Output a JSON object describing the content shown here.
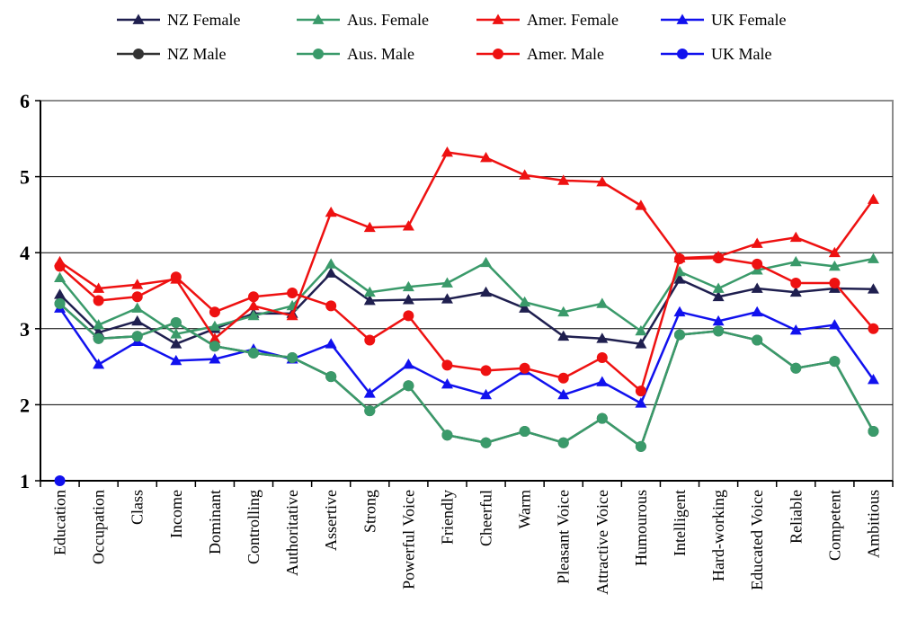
{
  "chart_data": {
    "type": "line",
    "title": "",
    "xlabel": "",
    "ylabel": "",
    "ylim": [
      1,
      6
    ],
    "yticks": [
      "1",
      "2",
      "3",
      "4",
      "5",
      "6"
    ],
    "grid": "horizontal",
    "legend_position": "top",
    "categories": [
      "Education",
      "Occupation",
      "Class",
      "Income",
      "Dominant",
      "Controlling",
      "Authoritative",
      "Assertive",
      "Strong",
      "Powerful Voice",
      "Friendly",
      "Cheerful",
      "Warm",
      "Pleasant Voice",
      "Attractive Voice",
      "Humourous",
      "Intelligent",
      "Hard-working",
      "Educated Voice",
      "Reliable",
      "Competent",
      "Ambitious"
    ],
    "series": [
      {
        "name": "NZ Female",
        "color": "#1f1f4f",
        "marker": "triangle",
        "values": [
          3.45,
          2.95,
          3.1,
          2.8,
          3.0,
          3.2,
          3.2,
          3.73,
          3.37,
          3.38,
          3.39,
          3.48,
          3.27,
          2.9,
          2.87,
          2.8,
          3.65,
          3.42,
          3.53,
          3.48,
          3.53,
          3.52
        ]
      },
      {
        "name": "Aus. Female",
        "color": "#3a9a6a",
        "marker": "triangle",
        "values": [
          3.67,
          3.05,
          3.27,
          2.93,
          3.03,
          3.17,
          3.3,
          3.85,
          3.48,
          3.55,
          3.6,
          3.87,
          3.35,
          3.22,
          3.33,
          2.97,
          3.75,
          3.53,
          3.77,
          3.88,
          3.82,
          3.92
        ]
      },
      {
        "name": "Amer. Female",
        "color": "#ee1111",
        "marker": "triangle",
        "values": [
          3.88,
          3.53,
          3.58,
          3.65,
          2.87,
          3.3,
          3.17,
          4.53,
          4.33,
          4.35,
          5.32,
          5.25,
          5.02,
          4.95,
          4.93,
          4.62,
          3.93,
          3.95,
          4.12,
          4.2,
          4.0,
          4.7
        ]
      },
      {
        "name": "UK Female",
        "color": "#1111ee",
        "marker": "triangle",
        "values": [
          3.27,
          2.53,
          2.83,
          2.58,
          2.6,
          2.73,
          2.6,
          2.8,
          2.15,
          2.53,
          2.27,
          2.13,
          2.45,
          2.13,
          2.3,
          2.02,
          3.22,
          3.1,
          3.22,
          2.98,
          3.05,
          2.33
        ]
      },
      {
        "name": "NZ Male",
        "color": "#333333",
        "marker": "circle",
        "values": [
          3.33,
          2.87,
          2.9,
          3.08,
          2.77,
          2.68,
          2.62,
          2.37,
          1.92,
          2.25,
          1.6,
          1.5,
          1.65,
          1.5,
          1.82,
          1.45,
          2.92,
          2.97,
          2.85,
          2.48,
          2.57,
          1.65
        ]
      },
      {
        "name": "Aus. Male",
        "color": "#3a9a6a",
        "marker": "circle",
        "values": [
          3.33,
          2.87,
          2.9,
          3.08,
          2.77,
          2.68,
          2.62,
          2.37,
          1.92,
          2.25,
          1.6,
          1.5,
          1.65,
          1.5,
          1.82,
          1.45,
          2.92,
          2.97,
          2.85,
          2.48,
          2.57,
          1.65
        ]
      },
      {
        "name": "Amer. Male",
        "color": "#ee1111",
        "marker": "circle",
        "values": [
          3.82,
          3.37,
          3.42,
          3.68,
          3.22,
          3.42,
          3.47,
          3.3,
          2.85,
          3.17,
          2.52,
          2.45,
          2.48,
          2.35,
          2.62,
          2.18,
          3.92,
          3.93,
          3.85,
          3.6,
          3.6,
          3.0
        ]
      },
      {
        "name": "UK Male",
        "color": "#1111ee",
        "marker": "circle",
        "values": [
          1.0,
          null,
          null,
          null,
          null,
          null,
          null,
          null,
          null,
          null,
          null,
          null,
          null,
          null,
          null,
          null,
          null,
          null,
          null,
          null,
          null,
          null
        ]
      }
    ]
  }
}
